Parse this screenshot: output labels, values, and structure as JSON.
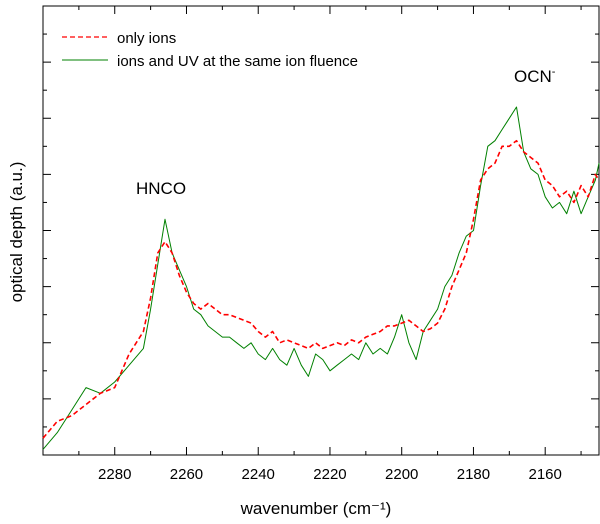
{
  "chart_data": {
    "type": "line",
    "xlabel": "wavenumber (cm⁻¹)",
    "ylabel": "optical depth (a.u.)",
    "xlim": [
      2300,
      2145
    ],
    "x_reversed": true,
    "ylim": [
      0,
      8
    ],
    "y_tick_labels_shown": false,
    "x_ticks": [
      2280,
      2260,
      2240,
      2220,
      2200,
      2180,
      2160
    ],
    "x_tick_labels": [
      "2280",
      "2260",
      "2240",
      "2220",
      "2200",
      "2180",
      "2160"
    ],
    "legend_position": "top-left",
    "grid": false,
    "annotations": [
      {
        "text": "HNCO",
        "x": 2266,
        "y": 4.4
      },
      {
        "text": "OCN",
        "sup": "-",
        "x": 2169,
        "y": 6.45
      }
    ],
    "series": [
      {
        "name": "only ions",
        "color": "#ff0000",
        "dash": "dashed",
        "x": [
          2300,
          2296,
          2292,
          2288,
          2284,
          2280,
          2276,
          2272,
          2270,
          2268,
          2266,
          2264,
          2262,
          2260,
          2258,
          2256,
          2254,
          2252,
          2250,
          2248,
          2246,
          2244,
          2242,
          2240,
          2238,
          2236,
          2234,
          2232,
          2230,
          2228,
          2226,
          2224,
          2222,
          2220,
          2218,
          2216,
          2214,
          2212,
          2210,
          2208,
          2206,
          2204,
          2202,
          2200,
          2198,
          2196,
          2194,
          2192,
          2190,
          2188,
          2186,
          2184,
          2182,
          2180,
          2178,
          2176,
          2174,
          2172,
          2170,
          2168,
          2166,
          2164,
          2162,
          2160,
          2158,
          2156,
          2154,
          2152,
          2150,
          2148,
          2146,
          2145
        ],
        "y": [
          0.3,
          0.6,
          0.7,
          0.9,
          1.1,
          1.2,
          1.8,
          2.2,
          2.8,
          3.6,
          3.8,
          3.6,
          3.2,
          2.9,
          2.7,
          2.6,
          2.7,
          2.6,
          2.5,
          2.5,
          2.45,
          2.4,
          2.35,
          2.2,
          2.1,
          2.2,
          2.0,
          2.05,
          2.0,
          1.95,
          1.9,
          2.0,
          1.9,
          1.95,
          2.0,
          1.95,
          2.05,
          2.0,
          2.1,
          2.15,
          2.2,
          2.3,
          2.3,
          2.35,
          2.4,
          2.3,
          2.2,
          2.25,
          2.35,
          2.6,
          3.0,
          3.3,
          3.6,
          4.2,
          4.9,
          5.1,
          5.2,
          5.5,
          5.5,
          5.6,
          5.4,
          5.3,
          5.2,
          4.9,
          4.8,
          4.6,
          4.7,
          4.5,
          4.8,
          4.6,
          5.0,
          4.9
        ]
      },
      {
        "name": "ions and UV at the same ion fluence",
        "color": "#008000",
        "dash": "solid",
        "x": [
          2300,
          2296,
          2292,
          2288,
          2284,
          2280,
          2276,
          2272,
          2270,
          2268,
          2266,
          2264,
          2262,
          2260,
          2258,
          2256,
          2254,
          2252,
          2250,
          2248,
          2246,
          2244,
          2242,
          2240,
          2238,
          2236,
          2234,
          2232,
          2230,
          2228,
          2226,
          2224,
          2222,
          2220,
          2218,
          2216,
          2214,
          2212,
          2210,
          2208,
          2206,
          2204,
          2202,
          2200,
          2198,
          2196,
          2194,
          2192,
          2190,
          2188,
          2186,
          2184,
          2182,
          2180,
          2178,
          2176,
          2174,
          2172,
          2170,
          2168,
          2166,
          2164,
          2162,
          2160,
          2158,
          2156,
          2154,
          2152,
          2150,
          2148,
          2146,
          2145
        ],
        "y": [
          0.1,
          0.4,
          0.8,
          1.2,
          1.1,
          1.3,
          1.6,
          1.9,
          2.6,
          3.4,
          4.2,
          3.6,
          3.3,
          3.0,
          2.6,
          2.5,
          2.3,
          2.2,
          2.1,
          2.1,
          2.0,
          1.9,
          2.0,
          1.8,
          1.7,
          1.9,
          1.7,
          1.6,
          1.9,
          1.6,
          1.4,
          1.8,
          1.7,
          1.5,
          1.6,
          1.7,
          1.8,
          1.7,
          2.0,
          1.8,
          1.9,
          1.8,
          2.1,
          2.5,
          2.0,
          1.7,
          2.2,
          2.4,
          2.6,
          3.0,
          3.2,
          3.6,
          3.9,
          4.0,
          4.8,
          5.5,
          5.6,
          5.8,
          6.0,
          6.2,
          5.4,
          5.1,
          5.0,
          4.6,
          4.4,
          4.5,
          4.3,
          4.7,
          4.3,
          4.6,
          4.9,
          5.2
        ]
      }
    ]
  }
}
